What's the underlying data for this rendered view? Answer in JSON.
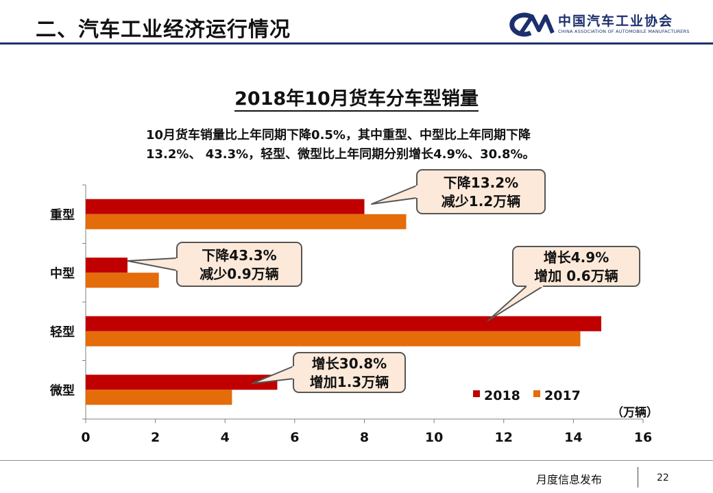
{
  "header": {
    "title": "二、汽车工业经济运行情况",
    "org_name": "中国汽车工业协会",
    "org_name_en": "CHINA ASSOCIATION OF AUTOMOBILE MANUFACTURERS"
  },
  "chart_title": "2018年10月货车分车型销量",
  "summary": {
    "line1": "10月货车销量比上年同期下降0.5%，其中重型、中型比上年同期下降",
    "line2": "13.2%、 43.3%，轻型、微型比上年同期分别增长4.9%、30.8%。"
  },
  "chart_data": {
    "type": "bar",
    "orientation": "horizontal",
    "categories": [
      "重型",
      "中型",
      "轻型",
      "微型"
    ],
    "series": [
      {
        "name": "2018",
        "color": "#c00000",
        "values": [
          8.0,
          1.2,
          14.8,
          5.5
        ]
      },
      {
        "name": "2017",
        "color": "#e46c0a",
        "values": [
          9.2,
          2.1,
          14.2,
          4.2
        ]
      }
    ],
    "xlim": [
      0,
      16
    ],
    "xticks": [
      "0",
      "2",
      "4",
      "6",
      "8",
      "10",
      "12",
      "14",
      "16"
    ],
    "unit_label": "（万辆）",
    "legend_position": "bottom-right",
    "annotations": [
      {
        "category": "重型",
        "line1": "下降13.2%",
        "line2": "减少1.2万辆"
      },
      {
        "category": "中型",
        "line1": "下降43.3%",
        "line2": "减少0.9万辆"
      },
      {
        "category": "轻型",
        "line1": "增长4.9%",
        "line2": "增加 0.6万辆"
      },
      {
        "category": "微型",
        "line1": "增长30.8%",
        "line2": "增加1.3万辆"
      }
    ],
    "callout_fill": "#fde9d9",
    "callout_border": "#555555"
  },
  "footer": {
    "label": "月度信息发布",
    "page_number": "22"
  }
}
